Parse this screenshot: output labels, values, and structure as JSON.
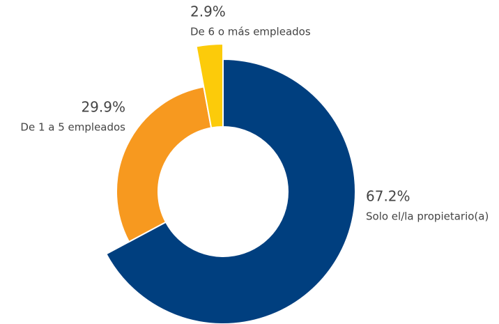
{
  "chart_data": {
    "type": "donut",
    "categories": [
      "Solo el/la propietario(a)",
      "De 1 a 5 empleados",
      "De 6 o más empleados"
    ],
    "values": [
      67.2,
      29.9,
      2.9
    ],
    "value_labels": [
      "67.2%",
      "29.9%",
      "2.9%"
    ],
    "colors": [
      "#003f7f",
      "#f7991f",
      "#fccb0a"
    ]
  }
}
